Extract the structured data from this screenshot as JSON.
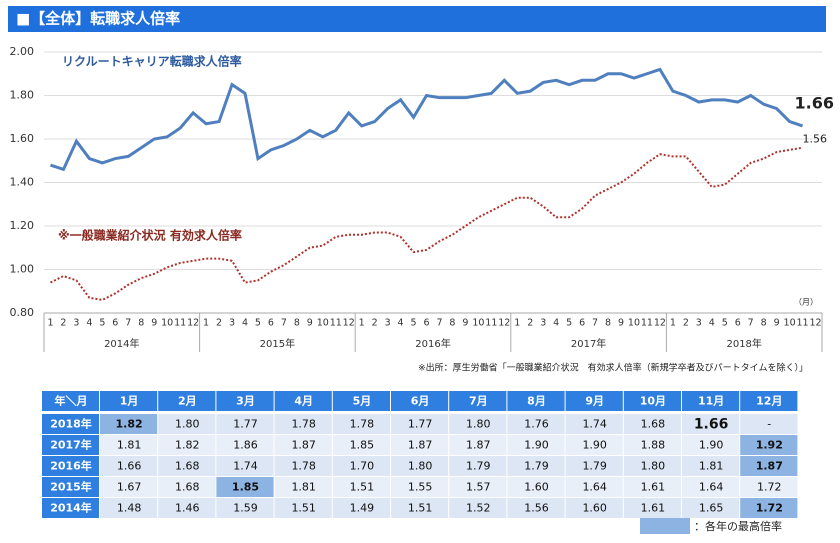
{
  "header": {
    "title": "■【全体】転職求人倍率"
  },
  "chart_data": {
    "type": "line",
    "categories": [
      "1",
      "2",
      "3",
      "4",
      "5",
      "6",
      "7",
      "8",
      "9",
      "10",
      "11",
      "12",
      "1",
      "2",
      "3",
      "4",
      "5",
      "6",
      "7",
      "8",
      "9",
      "10",
      "11",
      "12",
      "1",
      "2",
      "3",
      "4",
      "5",
      "6",
      "7",
      "8",
      "9",
      "10",
      "11",
      "12",
      "1",
      "2",
      "3",
      "4",
      "5",
      "6",
      "7",
      "8",
      "9",
      "10",
      "11",
      "12",
      "1",
      "2",
      "3",
      "4",
      "5",
      "6",
      "7",
      "8",
      "9",
      "10",
      "11",
      "12"
    ],
    "years": [
      "2014年",
      "2015年",
      "2016年",
      "2017年",
      "2018年"
    ],
    "x_unit": "（月）",
    "ylim": [
      0.8,
      2.0
    ],
    "yticks": [
      {
        "value": 0.8,
        "label": "0.80"
      },
      {
        "value": 1.0,
        "label": "1.00"
      },
      {
        "value": 1.2,
        "label": "1.20"
      },
      {
        "value": 1.4,
        "label": "1.40"
      },
      {
        "value": 1.6,
        "label": "1.60"
      },
      {
        "value": 1.8,
        "label": "1.80"
      },
      {
        "value": 2.0,
        "label": "2.00"
      }
    ],
    "grid": true,
    "series": [
      {
        "name": "リクルートキャリア転職求人倍率",
        "color": "#4f7fbf",
        "dash": false,
        "values": [
          1.48,
          1.46,
          1.59,
          1.51,
          1.49,
          1.51,
          1.52,
          1.56,
          1.6,
          1.61,
          1.65,
          1.72,
          1.67,
          1.68,
          1.85,
          1.81,
          1.51,
          1.55,
          1.57,
          1.6,
          1.64,
          1.61,
          1.64,
          1.72,
          1.66,
          1.68,
          1.74,
          1.78,
          1.7,
          1.8,
          1.79,
          1.79,
          1.79,
          1.8,
          1.81,
          1.87,
          1.81,
          1.82,
          1.86,
          1.87,
          1.85,
          1.87,
          1.87,
          1.9,
          1.9,
          1.88,
          1.9,
          1.92,
          1.82,
          1.8,
          1.77,
          1.78,
          1.78,
          1.77,
          1.8,
          1.76,
          1.74,
          1.68,
          1.66,
          null
        ]
      },
      {
        "name": "※一般職業紹介状況 有効求人倍率",
        "color": "#b0302a",
        "dash": true,
        "values": [
          0.94,
          0.97,
          0.95,
          0.87,
          0.86,
          0.89,
          0.93,
          0.96,
          0.98,
          1.01,
          1.03,
          1.04,
          1.05,
          1.05,
          1.04,
          0.94,
          0.95,
          0.99,
          1.02,
          1.06,
          1.1,
          1.11,
          1.15,
          1.16,
          1.16,
          1.17,
          1.17,
          1.15,
          1.08,
          1.09,
          1.13,
          1.16,
          1.2,
          1.24,
          1.27,
          1.3,
          1.33,
          1.33,
          1.29,
          1.24,
          1.24,
          1.28,
          1.34,
          1.37,
          1.4,
          1.44,
          1.49,
          1.53,
          1.52,
          1.52,
          1.45,
          1.38,
          1.39,
          1.44,
          1.49,
          1.51,
          1.54,
          1.55,
          1.56,
          null
        ]
      }
    ]
  },
  "source": "※出所：厚生労働省「一般職業紹介状況　有効求人倍率（新規学卒者及びパートタイムを除く）」",
  "table": {
    "corner": "年＼月",
    "columns": [
      "1月",
      "2月",
      "3月",
      "4月",
      "5月",
      "6月",
      "7月",
      "8月",
      "9月",
      "10月",
      "11月",
      "12月"
    ],
    "rows": [
      {
        "year": "2018年",
        "cells": [
          "1.82",
          "1.80",
          "1.77",
          "1.78",
          "1.78",
          "1.77",
          "1.80",
          "1.76",
          "1.74",
          "1.68",
          "1.66",
          "-"
        ]
      },
      {
        "year": "2017年",
        "cells": [
          "1.81",
          "1.82",
          "1.86",
          "1.87",
          "1.85",
          "1.87",
          "1.87",
          "1.90",
          "1.90",
          "1.88",
          "1.90",
          "1.92"
        ]
      },
      {
        "year": "2016年",
        "cells": [
          "1.66",
          "1.68",
          "1.74",
          "1.78",
          "1.70",
          "1.80",
          "1.79",
          "1.79",
          "1.79",
          "1.80",
          "1.81",
          "1.87"
        ]
      },
      {
        "year": "2015年",
        "cells": [
          "1.67",
          "1.68",
          "1.85",
          "1.81",
          "1.51",
          "1.55",
          "1.57",
          "1.60",
          "1.64",
          "1.61",
          "1.64",
          "1.72"
        ]
      },
      {
        "year": "2014年",
        "cells": [
          "1.48",
          "1.46",
          "1.59",
          "1.51",
          "1.49",
          "1.51",
          "1.52",
          "1.56",
          "1.60",
          "1.61",
          "1.65",
          "1.72"
        ]
      }
    ],
    "highlight": [
      [
        0,
        0
      ],
      [
        1,
        11
      ],
      [
        2,
        11
      ],
      [
        3,
        2
      ],
      [
        4,
        11
      ]
    ],
    "emphasis": [
      [
        0,
        10
      ]
    ],
    "legend": "：各年の最高倍率"
  }
}
